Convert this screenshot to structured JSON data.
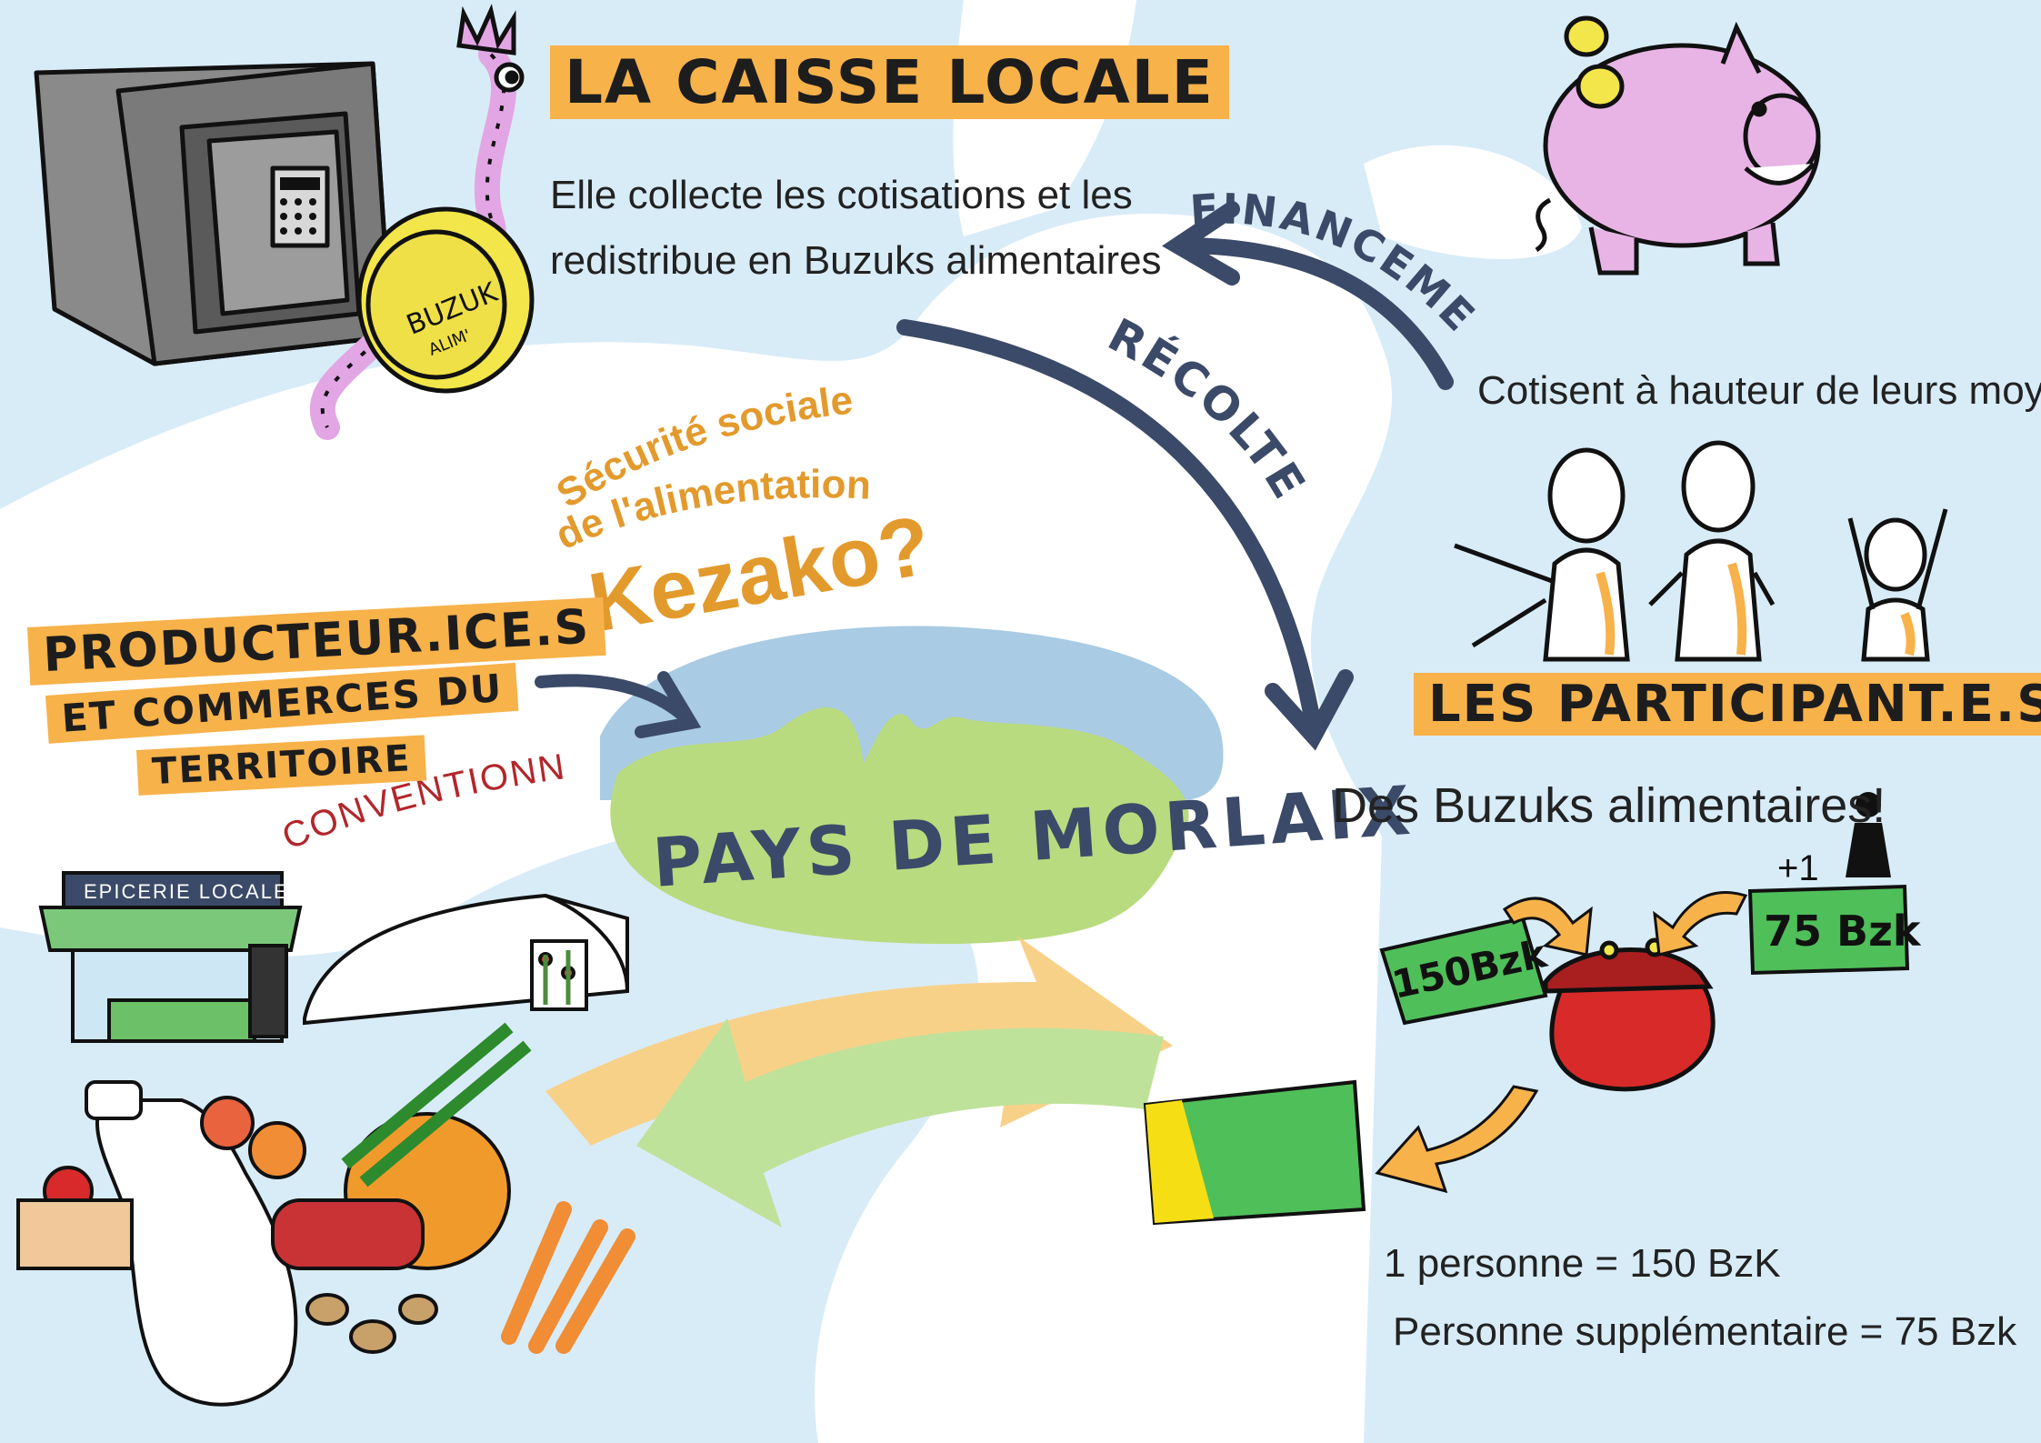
{
  "caisse": {
    "title": "LA CAISSE LOCALE",
    "line1": "Elle collecte les cotisations et les",
    "line2": "redistribue en Buzuks alimentaires"
  },
  "coin": {
    "line1": "BUZUK",
    "line2": "ALIM'"
  },
  "arrows": {
    "financement": "FINANCEMENT",
    "recolte": "RÉCOLTE"
  },
  "center": {
    "line1": "Sécurité sociale",
    "line2": "de l'alimentation",
    "line3": "Kezako?"
  },
  "producers": {
    "line1": "PRODUCTEUR.ICE.S",
    "line2": "ET COMMERCES DU",
    "line3": "TERRITOIRE",
    "note": "CONVENTIONNÉS"
  },
  "territory": {
    "name": "PAYS DE MORLAIX"
  },
  "participants": {
    "cotisent": "Cotisent à hauteur de leurs moyens",
    "title": "LES PARTICIPANT.E.S",
    "buzuks": "Des Buzuks alimentaires!"
  },
  "wallet": {
    "note_main": "150Bzk",
    "note_extra": "75 Bzk",
    "plus_one": "+1"
  },
  "rules": {
    "line1": "1 personne = 150 BzK",
    "line2": "Personne supplémentaire = 75 Bzk"
  },
  "shop": {
    "sign": "EPICERIE LOCALE"
  },
  "colors": {
    "river": "#ffffff",
    "sky": "#d8ecf8",
    "highlight": "#f7b24a",
    "navy_arrow": "#3b4a68",
    "orange_text": "#e39a2c",
    "green_note": "#4fbf5a",
    "pink_pig": "#e8b4e6",
    "coin_yellow": "#f2e64a",
    "red_text": "#b3262b"
  }
}
